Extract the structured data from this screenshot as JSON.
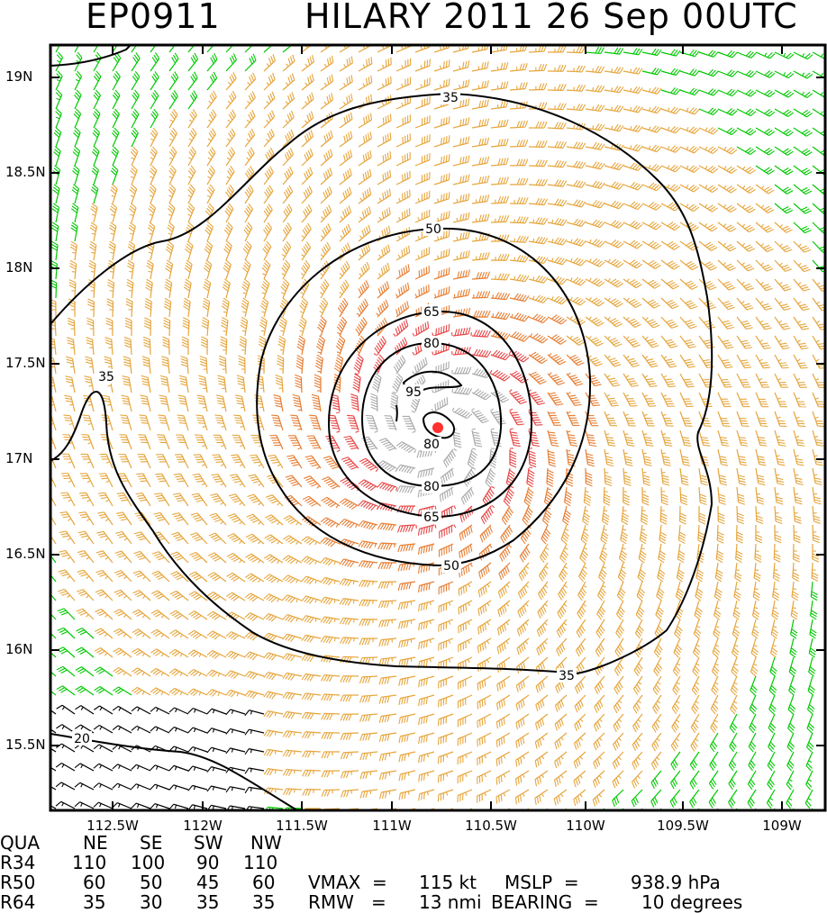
{
  "title": {
    "storm_id": "EP0911",
    "storm_name_time": "HILARY 2011 26 Sep 00UTC"
  },
  "map": {
    "lat_labels": [
      "19N",
      "18.5N",
      "18N",
      "17.5N",
      "17N",
      "16.5N",
      "16N",
      "15.5N"
    ],
    "lon_labels": [
      "112.5W",
      "112W",
      "111.5W",
      "111W",
      "110.5W",
      "110W",
      "109.5W",
      "109W"
    ],
    "contour_labels": [
      "35",
      "35",
      "35",
      "50",
      "50",
      "65",
      "65",
      "80",
      "80",
      "80",
      "95",
      "20"
    ],
    "contour_colors": {
      "line": "#000000"
    },
    "barb_colors": {
      "lt35": "#00c800",
      "35to50": "#e6a53c",
      "50to65": "#e67d32",
      "65to80": "#e64646",
      "gt80": "#aaaaaa",
      "lt20": "#000000"
    },
    "center_marker_color": "#ff3030"
  },
  "table": {
    "header": [
      "QUA",
      "NE",
      "SE",
      "SW",
      "NW"
    ],
    "rows": [
      {
        "label": "R34",
        "values": [
          "110",
          "100",
          "90",
          "110"
        ]
      },
      {
        "label": "R50",
        "values": [
          "60",
          "50",
          "45",
          "60"
        ]
      },
      {
        "label": "R64",
        "values": [
          "35",
          "30",
          "35",
          "35"
        ]
      }
    ],
    "vmax_label": "VMAX  =",
    "vmax_value": "115 kt",
    "mslp_label": "MSLP  =",
    "mslp_value": "938.9 hPa",
    "rmw_label": "RMW   =",
    "rmw_value": "13 nmi",
    "bearing_label": "BEARING  =",
    "bearing_value": "10 degrees"
  }
}
